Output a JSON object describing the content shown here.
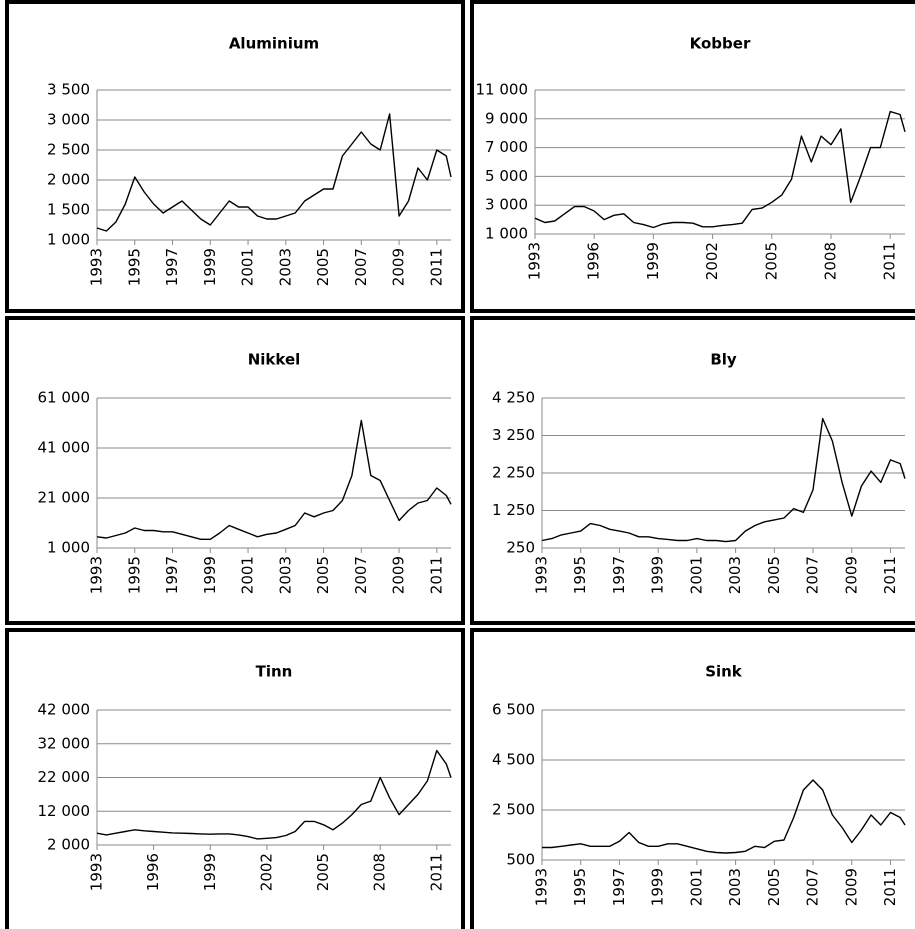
{
  "chart_data": [
    {
      "type": "line",
      "title": "Aluminium",
      "color": "#000000",
      "grid": true,
      "x": [
        1993,
        1993.5,
        1994,
        1994.5,
        1995,
        1995.5,
        1996,
        1996.5,
        1997,
        1997.5,
        1998,
        1998.5,
        1999,
        1999.5,
        2000,
        2000.5,
        2001,
        2001.5,
        2002,
        2002.5,
        2003,
        2003.5,
        2004,
        2004.5,
        2005,
        2005.5,
        2006,
        2006.5,
        2007,
        2007.5,
        2008,
        2008.5,
        2009,
        2009.5,
        2010,
        2010.5,
        2011,
        2011.5,
        2011.75
      ],
      "values": [
        1200,
        1150,
        1300,
        1600,
        2050,
        1800,
        1600,
        1450,
        1550,
        1650,
        1500,
        1350,
        1250,
        1450,
        1650,
        1550,
        1550,
        1400,
        1350,
        1350,
        1400,
        1450,
        1650,
        1750,
        1850,
        1850,
        2400,
        2600,
        2800,
        2600,
        2500,
        3100,
        1400,
        1650,
        2200,
        2000,
        2500,
        2400,
        2050
      ],
      "xlim": [
        1993,
        2011.75
      ],
      "xticks": [
        1993,
        1995,
        1997,
        1999,
        2001,
        2003,
        2005,
        2007,
        2009,
        2011
      ],
      "ylim": [
        1000,
        3500
      ],
      "yticks": [
        {
          "value": 1000,
          "label": "1 000"
        },
        {
          "value": 1500,
          "label": "1 500"
        },
        {
          "value": 2000,
          "label": "2 000"
        },
        {
          "value": 2500,
          "label": "2 500"
        },
        {
          "value": 3000,
          "label": "3 000"
        },
        {
          "value": 3500,
          "label": "3 500"
        }
      ]
    },
    {
      "type": "line",
      "title": "Kobber",
      "color": "#000000",
      "grid": true,
      "x": [
        1993,
        1993.5,
        1994,
        1994.5,
        1995,
        1995.5,
        1996,
        1996.5,
        1997,
        1997.5,
        1998,
        1998.5,
        1999,
        1999.5,
        2000,
        2000.5,
        2001,
        2001.5,
        2002,
        2002.5,
        2003,
        2003.5,
        2004,
        2004.5,
        2005,
        2005.5,
        2006,
        2006.5,
        2007,
        2007.5,
        2008,
        2008.5,
        2009,
        2009.5,
        2010,
        2010.5,
        2011,
        2011.5,
        2011.75
      ],
      "values": [
        2100,
        1800,
        1900,
        2400,
        2900,
        2900,
        2600,
        2000,
        2300,
        2400,
        1800,
        1650,
        1450,
        1700,
        1800,
        1800,
        1750,
        1500,
        1500,
        1600,
        1650,
        1750,
        2700,
        2800,
        3200,
        3700,
        4800,
        7800,
        6000,
        7800,
        7200,
        8300,
        3200,
        5000,
        7000,
        7000,
        9500,
        9300,
        8100
      ],
      "xlim": [
        1993,
        2011.75
      ],
      "xticks": [
        1993,
        1996,
        1999,
        2002,
        2005,
        2008,
        2011
      ],
      "ylim": [
        1000,
        11000
      ],
      "yticks": [
        {
          "value": 1000,
          "label": "1 000"
        },
        {
          "value": 3000,
          "label": "3 000"
        },
        {
          "value": 5000,
          "label": "5 000"
        },
        {
          "value": 7000,
          "label": "7 000"
        },
        {
          "value": 9000,
          "label": "9 000"
        },
        {
          "value": 11000,
          "label": "11 000"
        }
      ]
    },
    {
      "type": "line",
      "title": "Nikkel",
      "color": "#000000",
      "grid": true,
      "x": [
        1993,
        1993.5,
        1994,
        1994.5,
        1995,
        1995.5,
        1996,
        1996.5,
        1997,
        1997.5,
        1998,
        1998.5,
        1999,
        1999.5,
        2000,
        2000.5,
        2001,
        2001.5,
        2002,
        2002.5,
        2003,
        2003.5,
        2004,
        2004.5,
        2005,
        2005.5,
        2006,
        2006.5,
        2007,
        2007.5,
        2008,
        2008.5,
        2009,
        2009.5,
        2010,
        2010.5,
        2011,
        2011.5,
        2011.75
      ],
      "values": [
        5500,
        5000,
        6000,
        7000,
        9000,
        8000,
        8000,
        7500,
        7500,
        6500,
        5500,
        4500,
        4500,
        7000,
        10000,
        8500,
        7000,
        5500,
        6500,
        7000,
        8500,
        10000,
        15000,
        13500,
        15000,
        16000,
        20000,
        30000,
        52000,
        30000,
        28000,
        20000,
        12000,
        16000,
        19000,
        20000,
        25000,
        22000,
        18500
      ],
      "xlim": [
        1993,
        2011.75
      ],
      "xticks": [
        1993,
        1995,
        1997,
        1999,
        2001,
        2003,
        2005,
        2007,
        2009,
        2011
      ],
      "ylim": [
        1000,
        61000
      ],
      "yticks": [
        {
          "value": 1000,
          "label": "1 000"
        },
        {
          "value": 21000,
          "label": "21 000"
        },
        {
          "value": 41000,
          "label": "41 000"
        },
        {
          "value": 61000,
          "label": "61 000"
        }
      ]
    },
    {
      "type": "line",
      "title": "Bly",
      "color": "#000000",
      "grid": true,
      "x": [
        1993,
        1993.5,
        1994,
        1994.5,
        1995,
        1995.5,
        1996,
        1996.5,
        1997,
        1997.5,
        1998,
        1998.5,
        1999,
        1999.5,
        2000,
        2000.5,
        2001,
        2001.5,
        2002,
        2002.5,
        2003,
        2003.5,
        2004,
        2004.5,
        2005,
        2005.5,
        2006,
        2006.5,
        2007,
        2007.5,
        2008,
        2008.5,
        2009,
        2009.5,
        2010,
        2010.5,
        2011,
        2011.5,
        2011.75
      ],
      "values": [
        450,
        500,
        600,
        650,
        700,
        900,
        850,
        750,
        700,
        650,
        550,
        550,
        500,
        480,
        450,
        450,
        500,
        450,
        450,
        420,
        450,
        700,
        850,
        950,
        1000,
        1050,
        1300,
        1200,
        1800,
        3700,
        3100,
        2000,
        1100,
        1900,
        2300,
        2000,
        2600,
        2500,
        2100
      ],
      "xlim": [
        1993,
        2011.75
      ],
      "xticks": [
        1993,
        1995,
        1997,
        1999,
        2001,
        2003,
        2005,
        2007,
        2009,
        2011
      ],
      "ylim": [
        250,
        4250
      ],
      "yticks": [
        250,
        {
          "value": 1250,
          "label": "1 250"
        },
        {
          "value": 2250,
          "label": "2 250"
        },
        {
          "value": 3250,
          "label": "3 250"
        },
        {
          "value": 4250,
          "label": "4 250"
        }
      ]
    },
    {
      "type": "line",
      "title": "Tinn",
      "color": "#000000",
      "grid": true,
      "x": [
        1993,
        1993.5,
        1994,
        1994.5,
        1995,
        1995.5,
        1996,
        1996.5,
        1997,
        1997.5,
        1998,
        1998.5,
        1999,
        1999.5,
        2000,
        2000.5,
        2001,
        2001.5,
        2002,
        2002.5,
        2003,
        2003.5,
        2004,
        2004.5,
        2005,
        2005.5,
        2006,
        2006.5,
        2007,
        2007.5,
        2008,
        2008.5,
        2009,
        2009.5,
        2010,
        2010.5,
        2011,
        2011.5,
        2011.75
      ],
      "values": [
        5500,
        5000,
        5500,
        6000,
        6500,
        6200,
        6000,
        5800,
        5600,
        5500,
        5400,
        5300,
        5200,
        5300,
        5300,
        5000,
        4500,
        3800,
        4000,
        4200,
        4800,
        6000,
        9000,
        9000,
        8000,
        6500,
        8500,
        11000,
        14000,
        15000,
        22000,
        16000,
        11000,
        14000,
        17000,
        21000,
        30000,
        26000,
        22000
      ],
      "xlim": [
        1993,
        2011.75
      ],
      "xticks": [
        1993,
        1996,
        1999,
        2002,
        2005,
        2008,
        2011
      ],
      "ylim": [
        2000,
        42000
      ],
      "yticks": [
        {
          "value": 2000,
          "label": "2 000"
        },
        {
          "value": 12000,
          "label": "12 000"
        },
        {
          "value": 22000,
          "label": "22 000"
        },
        {
          "value": 32000,
          "label": "32 000"
        },
        {
          "value": 42000,
          "label": "42 000"
        }
      ]
    },
    {
      "type": "line",
      "title": "Sink",
      "color": "#000000",
      "grid": true,
      "x": [
        1993,
        1993.5,
        1994,
        1994.5,
        1995,
        1995.5,
        1996,
        1996.5,
        1997,
        1997.5,
        1998,
        1998.5,
        1999,
        1999.5,
        2000,
        2000.5,
        2001,
        2001.5,
        2002,
        2002.5,
        2003,
        2003.5,
        2004,
        2004.5,
        2005,
        2005.5,
        2006,
        2006.5,
        2007,
        2007.5,
        2008,
        2008.5,
        2009,
        2009.5,
        2010,
        2010.5,
        2011,
        2011.5,
        2011.75
      ],
      "values": [
        1000,
        1000,
        1050,
        1100,
        1150,
        1050,
        1050,
        1050,
        1250,
        1600,
        1200,
        1050,
        1050,
        1150,
        1150,
        1050,
        950,
        850,
        800,
        780,
        800,
        850,
        1050,
        1000,
        1250,
        1300,
        2200,
        3300,
        3700,
        3300,
        2300,
        1800,
        1200,
        1700,
        2300,
        1900,
        2400,
        2200,
        1900
      ],
      "xlim": [
        1993,
        2011.75
      ],
      "xticks": [
        1993,
        1995,
        1997,
        1999,
        2001,
        2003,
        2005,
        2007,
        2009,
        2011
      ],
      "ylim": [
        500,
        6500
      ],
      "yticks": [
        500,
        {
          "value": 2500,
          "label": "2 500"
        },
        {
          "value": 4500,
          "label": "4 500"
        },
        {
          "value": 6500,
          "label": "6 500"
        }
      ]
    }
  ]
}
